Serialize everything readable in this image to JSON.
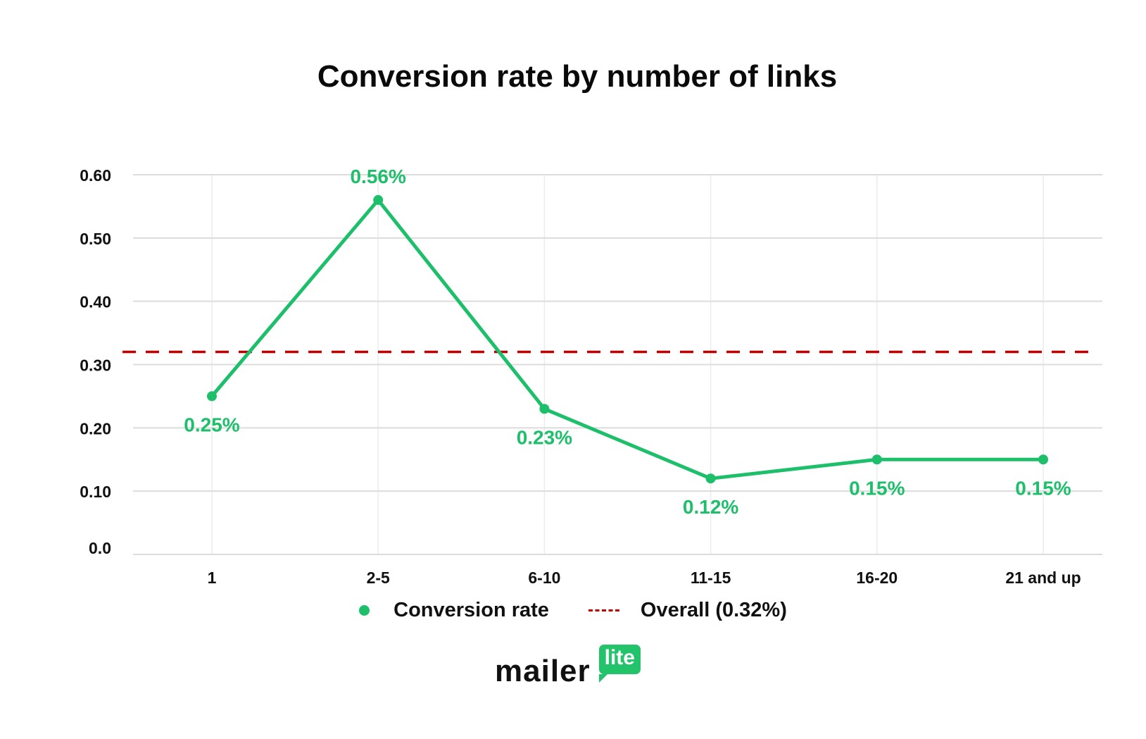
{
  "chart_data": {
    "type": "line",
    "title": "Conversion rate by number of links",
    "xlabel": "",
    "ylabel": "",
    "categories": [
      "1",
      "2-5",
      "6-10",
      "11-15",
      "16-20",
      "21 and up"
    ],
    "series": [
      {
        "name": "Conversion rate",
        "values": [
          0.25,
          0.56,
          0.23,
          0.12,
          0.15,
          0.15
        ],
        "labels": [
          "0.25%",
          "0.56%",
          "0.23%",
          "0.12%",
          "0.15%",
          "0.15%"
        ],
        "color": "#1dbf6b"
      }
    ],
    "reference_line": {
      "name": "Overall  (0.32%)",
      "value": 0.32,
      "color": "#c00000",
      "style": "dashed"
    },
    "yticks": [
      "0.0",
      "0.10",
      "0.20",
      "0.30",
      "0.40",
      "0.50",
      "0.60"
    ],
    "ylim": [
      0,
      0.6
    ],
    "grid": true,
    "legend": "bottom"
  },
  "brand": {
    "logo_text": "mailer",
    "logo_badge": "lite",
    "color": "#22c36b"
  }
}
